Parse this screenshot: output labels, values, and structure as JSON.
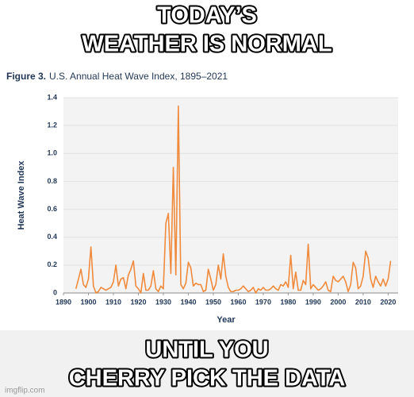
{
  "meme": {
    "top_lines": [
      "TODAY’S",
      "WEATHER IS NORMAL"
    ],
    "bottom_lines": [
      "UNTIL YOU",
      "CHERRY PICK THE DATA"
    ],
    "watermark": "imgflip.com"
  },
  "chart_data": {
    "type": "line",
    "figure_label": "Figure 3.",
    "title": "U.S. Annual Heat Wave Index, 1895–2021",
    "x_label": "Year",
    "y_label": "Heat Wave Index",
    "color": "#f08a3c",
    "grid": true,
    "xlim": [
      1890,
      2024
    ],
    "ylim": [
      0,
      1.4
    ],
    "xticks": [
      1890,
      1900,
      1910,
      1920,
      1930,
      1940,
      1950,
      1960,
      1970,
      1980,
      1990,
      2000,
      2010,
      2020
    ],
    "yticks": [
      0,
      0.2,
      0.4,
      0.6,
      0.8,
      {
        "value": 1,
        "label": "1.0"
      },
      1.2,
      1.4
    ],
    "x": [
      1895,
      1896,
      1897,
      1898,
      1899,
      1900,
      1901,
      1902,
      1903,
      1904,
      1905,
      1906,
      1907,
      1908,
      1909,
      1910,
      1911,
      1912,
      1913,
      1914,
      1915,
      1916,
      1917,
      1918,
      1919,
      1920,
      1921,
      1922,
      1923,
      1924,
      1925,
      1926,
      1927,
      1928,
      1929,
      1930,
      1931,
      1932,
      1933,
      1934,
      1935,
      1936,
      1937,
      1938,
      1939,
      1940,
      1941,
      1942,
      1943,
      1944,
      1945,
      1946,
      1947,
      1948,
      1949,
      1950,
      1951,
      1952,
      1953,
      1954,
      1955,
      1956,
      1957,
      1958,
      1959,
      1960,
      1961,
      1962,
      1963,
      1964,
      1965,
      1966,
      1967,
      1968,
      1969,
      1970,
      1971,
      1972,
      1973,
      1974,
      1975,
      1976,
      1977,
      1978,
      1979,
      1980,
      1981,
      1982,
      1983,
      1984,
      1985,
      1986,
      1987,
      1988,
      1989,
      1990,
      1991,
      1992,
      1993,
      1994,
      1995,
      1996,
      1997,
      1998,
      1999,
      2000,
      2001,
      2002,
      2003,
      2004,
      2005,
      2006,
      2007,
      2008,
      2009,
      2010,
      2011,
      2012,
      2013,
      2014,
      2015,
      2016,
      2017,
      2018,
      2019,
      2020,
      2021
    ],
    "values": [
      0.03,
      0.1,
      0.17,
      0.06,
      0.04,
      0.1,
      0.33,
      0.05,
      0.0,
      0.01,
      0.04,
      0.03,
      0.02,
      0.03,
      0.04,
      0.08,
      0.2,
      0.05,
      0.1,
      0.11,
      0.03,
      0.13,
      0.17,
      0.23,
      0.05,
      0.03,
      0.0,
      0.14,
      0.02,
      0.02,
      0.05,
      0.16,
      0.03,
      0.01,
      0.05,
      0.03,
      0.5,
      0.57,
      0.14,
      0.9,
      0.13,
      1.34,
      0.06,
      0.03,
      0.07,
      0.22,
      0.18,
      0.05,
      0.07,
      0.06,
      0.06,
      0.01,
      0.02,
      0.17,
      0.1,
      0.02,
      0.06,
      0.2,
      0.1,
      0.28,
      0.12,
      0.04,
      0.01,
      0.01,
      0.02,
      0.02,
      0.03,
      0.05,
      0.03,
      0.01,
      0.02,
      0.04,
      0.0,
      0.03,
      0.02,
      0.04,
      0.02,
      0.02,
      0.03,
      0.05,
      0.03,
      0.02,
      0.06,
      0.05,
      0.08,
      0.04,
      0.27,
      0.03,
      0.15,
      0.02,
      0.02,
      0.09,
      0.06,
      0.35,
      0.03,
      0.06,
      0.04,
      0.02,
      0.03,
      0.05,
      0.08,
      0.02,
      0.01,
      0.12,
      0.09,
      0.08,
      0.1,
      0.12,
      0.08,
      0.01,
      0.06,
      0.22,
      0.18,
      0.03,
      0.05,
      0.12,
      0.3,
      0.25,
      0.1,
      0.04,
      0.12,
      0.08,
      0.05,
      0.1,
      0.05,
      0.1,
      0.23
    ]
  }
}
